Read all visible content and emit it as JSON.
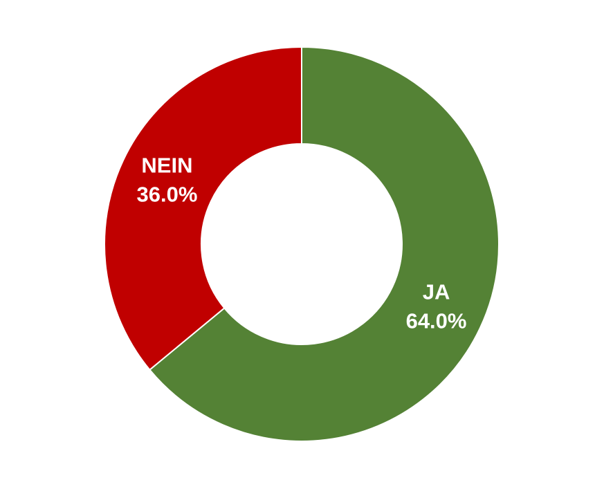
{
  "chart_data": {
    "type": "donut",
    "categories": [
      "JA",
      "NEIN"
    ],
    "values": [
      64,
      36
    ],
    "value_labels": [
      "64.0%",
      "36.0%"
    ],
    "colors": [
      "#548235",
      "#c00000"
    ]
  }
}
